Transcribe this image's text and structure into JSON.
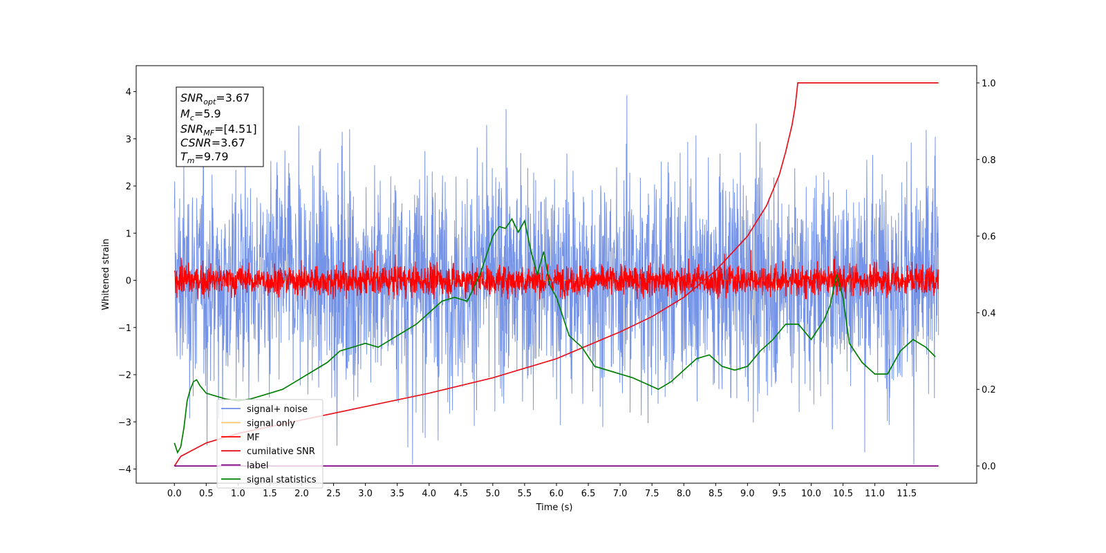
{
  "chart_data": {
    "type": "line",
    "xlabel": "Time (s)",
    "ylabel": "Whitened strain",
    "xlim": [
      -0.6,
      12.6
    ],
    "ylim": [
      -4.3,
      4.55
    ],
    "y2lim": [
      -0.045,
      1.045
    ],
    "xticks": [
      0.0,
      0.5,
      1.0,
      1.5,
      2.0,
      2.5,
      3.0,
      3.5,
      4.0,
      4.5,
      5.0,
      5.5,
      6.0,
      6.5,
      7.0,
      7.5,
      8.0,
      8.5,
      9.0,
      9.5,
      10.0,
      10.5,
      11.0,
      11.5
    ],
    "xtick_labels": [
      "0.0",
      "0.5",
      "1.0",
      "1.5",
      "2.0",
      "2.5",
      "3.0",
      "3.5",
      "4.0",
      "4.5",
      "5.0",
      "5.5",
      "6.0",
      "6.5",
      "7.0",
      "7.5",
      "8.0",
      "8.5",
      "9.0",
      "9.5",
      "10.0",
      "10.5",
      "11.0",
      "11.5"
    ],
    "yticks": [
      -4,
      -3,
      -2,
      -1,
      0,
      1,
      2,
      3,
      4
    ],
    "ytick_labels": [
      "−4",
      "−3",
      "−2",
      "−1",
      "0",
      "1",
      "2",
      "3",
      "4"
    ],
    "y2ticks": [
      0.0,
      0.2,
      0.4,
      0.6,
      0.8,
      1.0
    ],
    "y2tick_labels": [
      "0.0",
      "0.2",
      "0.4",
      "0.6",
      "0.8",
      "1.0"
    ],
    "legend_position": "lower-left",
    "series": [
      {
        "name": "signal+ noise",
        "axis": "left",
        "color": "#6f8ee6",
        "kind": "noise",
        "x_range": [
          0.0,
          12.0
        ],
        "typical_range": [
          -1.5,
          1.5
        ],
        "extremes": [
          -3.9,
          4.2
        ]
      },
      {
        "name": "signal only",
        "axis": "left",
        "color": "#ffc766",
        "kind": "flat",
        "x_range": [
          0.0,
          12.0
        ],
        "value": 0.0
      },
      {
        "name": "MF",
        "axis": "left",
        "color": "#ff0000",
        "kind": "noise",
        "x_range": [
          0.0,
          12.0
        ],
        "typical_range": [
          -0.3,
          0.4
        ],
        "extremes": [
          -0.4,
          0.95
        ]
      },
      {
        "name": "cumilative SNR",
        "axis": "right",
        "color": "#e8101a",
        "x": [
          0.0,
          0.1,
          0.5,
          1.0,
          2.0,
          3.0,
          4.0,
          5.0,
          6.0,
          7.0,
          7.5,
          8.0,
          8.5,
          9.0,
          9.3,
          9.5,
          9.6,
          9.7,
          9.75,
          9.79,
          12.0
        ],
        "y": [
          0.0,
          0.025,
          0.06,
          0.085,
          0.12,
          0.155,
          0.19,
          0.23,
          0.28,
          0.35,
          0.39,
          0.44,
          0.51,
          0.6,
          0.68,
          0.76,
          0.82,
          0.89,
          0.94,
          1.0,
          1.0
        ]
      },
      {
        "name": "label",
        "axis": "right",
        "color": "#800080",
        "x": [
          0.0,
          12.0
        ],
        "y": [
          0.0,
          0.0
        ]
      },
      {
        "name": "signal statistics",
        "axis": "right",
        "color": "#008000",
        "x": [
          0.0,
          0.05,
          0.1,
          0.15,
          0.2,
          0.25,
          0.3,
          0.35,
          0.4,
          0.5,
          0.6,
          0.8,
          1.0,
          1.2,
          1.5,
          1.7,
          1.9,
          2.0,
          2.2,
          2.4,
          2.6,
          2.8,
          3.0,
          3.2,
          3.4,
          3.6,
          3.8,
          4.0,
          4.2,
          4.4,
          4.6,
          4.8,
          5.0,
          5.1,
          5.2,
          5.3,
          5.4,
          5.5,
          5.6,
          5.7,
          5.8,
          5.9,
          6.0,
          6.2,
          6.4,
          6.6,
          6.8,
          7.0,
          7.2,
          7.4,
          7.6,
          7.8,
          8.0,
          8.2,
          8.4,
          8.6,
          8.8,
          9.0,
          9.2,
          9.4,
          9.6,
          9.8,
          10.0,
          10.2,
          10.3,
          10.4,
          10.5,
          10.6,
          10.8,
          11.0,
          11.2,
          11.4,
          11.6,
          11.8,
          11.95
        ],
        "y": [
          0.06,
          0.035,
          0.05,
          0.1,
          0.17,
          0.2,
          0.22,
          0.225,
          0.21,
          0.19,
          0.185,
          0.175,
          0.17,
          0.175,
          0.19,
          0.2,
          0.22,
          0.23,
          0.25,
          0.27,
          0.3,
          0.31,
          0.32,
          0.31,
          0.33,
          0.35,
          0.37,
          0.4,
          0.43,
          0.44,
          0.43,
          0.5,
          0.6,
          0.625,
          0.62,
          0.645,
          0.61,
          0.64,
          0.56,
          0.5,
          0.56,
          0.47,
          0.44,
          0.34,
          0.31,
          0.26,
          0.25,
          0.24,
          0.23,
          0.215,
          0.2,
          0.22,
          0.25,
          0.28,
          0.29,
          0.26,
          0.25,
          0.26,
          0.3,
          0.33,
          0.37,
          0.37,
          0.33,
          0.38,
          0.42,
          0.5,
          0.44,
          0.32,
          0.27,
          0.24,
          0.24,
          0.3,
          0.33,
          0.31,
          0.285
        ]
      }
    ]
  },
  "info_box": {
    "line1_main": "SNR",
    "line1_sub": "opt",
    "line1_value": "=3.67",
    "line2_main": "M",
    "line2_sub": "c",
    "line2_value": "=5.9",
    "line3_main": "SNR",
    "line3_sub": "MF",
    "line3_value": "=[4.51]",
    "line4_main": "CSNR",
    "line4_value": "=3.67",
    "line5_main": "T",
    "line5_sub": "m",
    "line5_value": "=9.79"
  }
}
